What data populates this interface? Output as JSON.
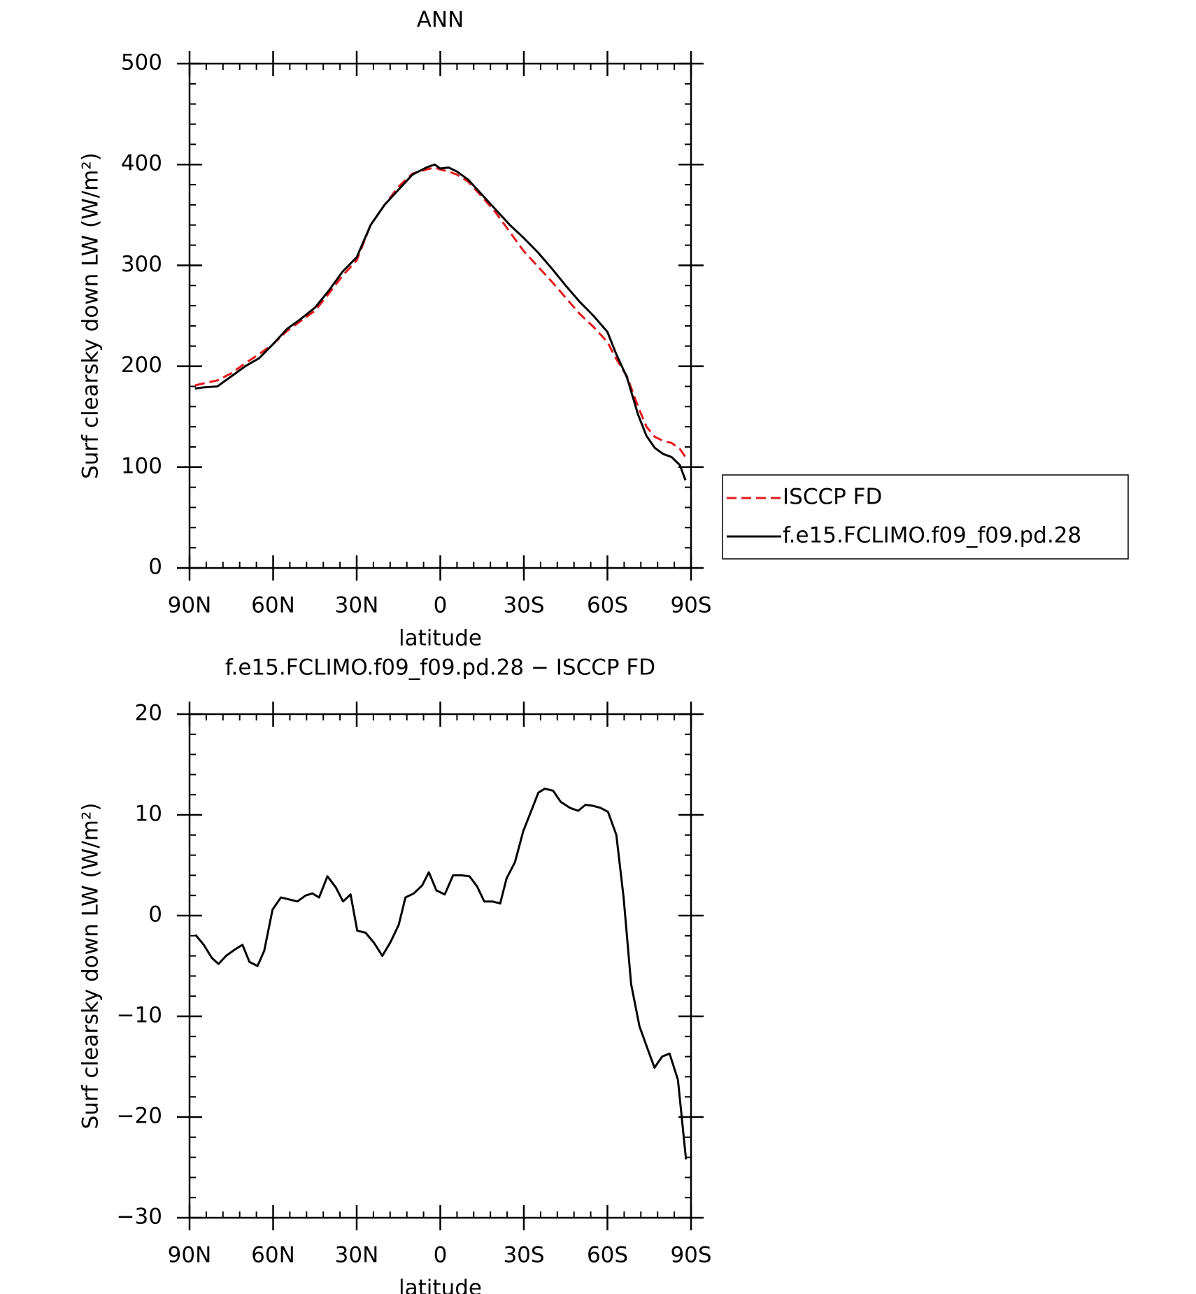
{
  "chart_data": [
    {
      "type": "line",
      "title": "ANN",
      "xlabel": "latitude",
      "ylabel": "Surf clearsky down LW (W/m²)",
      "x": [
        88,
        85,
        80,
        75,
        70,
        65,
        60,
        55,
        50,
        45,
        40,
        35,
        30,
        25,
        20,
        15,
        10,
        5,
        2,
        0,
        -3,
        -6,
        -10,
        -15,
        -20,
        -25,
        -30,
        -35,
        -40,
        -45,
        -50,
        -55,
        -60,
        -63,
        -67,
        -71,
        -74,
        -77,
        -80,
        -83,
        -86,
        -88
      ],
      "series": [
        {
          "name": "ISCCP FD",
          "color": "#e41a1c",
          "dash": true,
          "values": [
            181,
            183,
            186,
            193,
            203,
            212,
            222,
            235,
            245,
            255,
            272,
            290,
            305,
            340,
            360,
            378,
            391,
            395,
            397,
            395,
            393,
            390,
            383,
            368,
            352,
            333,
            314,
            299,
            284,
            268,
            252,
            239,
            224,
            208,
            190,
            160,
            140,
            130,
            126,
            124,
            118,
            110
          ]
        },
        {
          "name": "f.e15.FCLIMO.f09_f09.pd.28",
          "color": "#000000",
          "dash": false,
          "values": [
            178,
            179,
            180,
            190,
            200,
            208,
            222,
            237,
            247,
            258,
            275,
            294,
            308,
            340,
            360,
            375,
            390,
            397,
            400,
            396,
            397,
            393,
            385,
            370,
            355,
            340,
            327,
            313,
            297,
            280,
            264,
            250,
            234,
            213,
            189,
            152,
            131,
            119,
            113,
            110,
            102,
            87
          ]
        }
      ],
      "xlim": [
        90,
        -90
      ],
      "xticks": [
        {
          "value": 90,
          "label": "90N"
        },
        {
          "value": 60,
          "label": "60N"
        },
        {
          "value": 30,
          "label": "30N"
        },
        0,
        {
          "value": -30,
          "label": "30S"
        },
        {
          "value": -60,
          "label": "60S"
        },
        {
          "value": -90,
          "label": "90S"
        }
      ],
      "ylim": [
        0,
        500
      ],
      "yticks": [
        0,
        100,
        200,
        300,
        400,
        500
      ],
      "legend": "right"
    },
    {
      "type": "line",
      "title": "f.e15.FCLIMO.f09_f09.pd.28 − ISCCP FD",
      "xlabel": "latitude",
      "ylabel": "Surf clearsky down LW (W/m²)",
      "x": [
        87.9,
        84.9,
        82,
        79.6,
        76.9,
        73.9,
        71,
        68.5,
        65.6,
        63.2,
        60.2,
        57.2,
        54.2,
        51.3,
        48.3,
        45.9,
        43.5,
        40.5,
        37.5,
        34.9,
        32.2,
        29.8,
        26.8,
        23.8,
        20.8,
        17.8,
        14.9,
        12.5,
        9.5,
        6.5,
        4.1,
        1.4,
        -1.6,
        -4.6,
        -7.6,
        -10.5,
        -13.2,
        -15.8,
        -18.8,
        -21.5,
        -23.8,
        -26.8,
        -29.8,
        -32.8,
        -35.2,
        -37.5,
        -40.5,
        -43.2,
        -46.5,
        -49.5,
        -52.1,
        -54.8,
        -57.5,
        -60.2,
        -63.2,
        -65.8,
        -68.5,
        -71.5,
        -74.5,
        -76.9,
        -79.6,
        -82.3,
        -85.3,
        -88.2
      ],
      "series": [
        {
          "color": "#000000",
          "dash": false,
          "values": [
            -1.9,
            -2.9,
            -4.2,
            -4.8,
            -4,
            -3.4,
            -2.9,
            -4.6,
            -5,
            -3.5,
            0.6,
            1.8,
            1.6,
            1.4,
            2,
            2.2,
            1.8,
            3.9,
            2.8,
            1.4,
            2.1,
            -1.5,
            -1.7,
            -2.7,
            -4,
            -2.6,
            -0.9,
            1.8,
            2.2,
            3,
            4.3,
            2.5,
            2.1,
            4,
            4,
            3.9,
            2.9,
            1.4,
            1.4,
            1.2,
            3.7,
            5.3,
            8.4,
            10.5,
            12.2,
            12.6,
            12.4,
            11.3,
            10.7,
            10.4,
            11,
            10.9,
            10.7,
            10.3,
            8,
            1.8,
            -6.8,
            -11,
            -13.3,
            -15.1,
            -14,
            -13.7,
            -16.3,
            -24.2
          ]
        }
      ],
      "xlim": [
        90,
        -90
      ],
      "xticks": [
        {
          "value": 90,
          "label": "90N"
        },
        {
          "value": 60,
          "label": "60N"
        },
        {
          "value": 30,
          "label": "30N"
        },
        0,
        {
          "value": -30,
          "label": "30S"
        },
        {
          "value": -60,
          "label": "60S"
        },
        {
          "value": -90,
          "label": "90S"
        }
      ],
      "ylim": [
        -30,
        20
      ],
      "yticks": [
        {
          "value": -30,
          "label": "−30"
        },
        {
          "value": -20,
          "label": "−20"
        },
        {
          "value": -10,
          "label": "−10"
        },
        0,
        10,
        20
      ]
    }
  ]
}
